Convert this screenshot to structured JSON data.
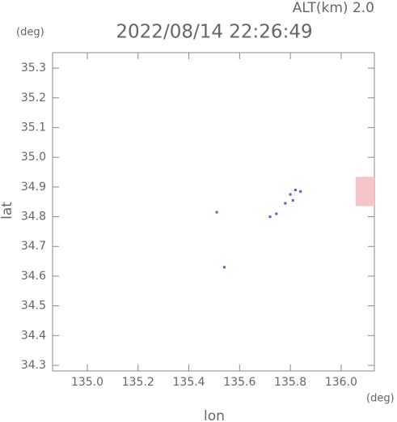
{
  "chart_data": {
    "type": "scatter",
    "title": "2022/08/14 22:26:49",
    "subtitle": "ALT(km) 2.0",
    "x_label": "lon",
    "y_label": "lat",
    "x_unit": "(deg)",
    "y_unit": "(deg)",
    "xlim": [
      134.863,
      136.131
    ],
    "ylim": [
      34.281,
      35.352
    ],
    "xticks": [
      {
        "value": 135,
        "label": "135.0"
      },
      135.2,
      135.4,
      135.6,
      135.8,
      {
        "value": 136,
        "label": "136.0"
      }
    ],
    "yticks": [
      35.3,
      35.2,
      35.1,
      {
        "value": 35,
        "label": "35.0"
      },
      34.9,
      34.8,
      34.7,
      34.6,
      34.5,
      34.4,
      34.3
    ],
    "series": [
      {
        "color": "#f4c4c8",
        "x": [
          136.08,
          136.11,
          136.13,
          136.08,
          136.11,
          136.13,
          136.08,
          136.11,
          136.13
        ],
        "values": [
          34.855,
          34.855,
          34.855,
          34.885,
          34.885,
          34.885,
          34.915,
          34.915,
          34.915
        ]
      },
      {
        "color": "#5a5ad8",
        "x": [
          135.51,
          135.54,
          135.72,
          135.745,
          135.78,
          135.8,
          135.82,
          135.84,
          135.81
        ],
        "values": [
          34.815,
          34.63,
          34.8,
          34.81,
          34.845,
          34.875,
          34.89,
          34.885,
          34.855
        ]
      }
    ]
  }
}
